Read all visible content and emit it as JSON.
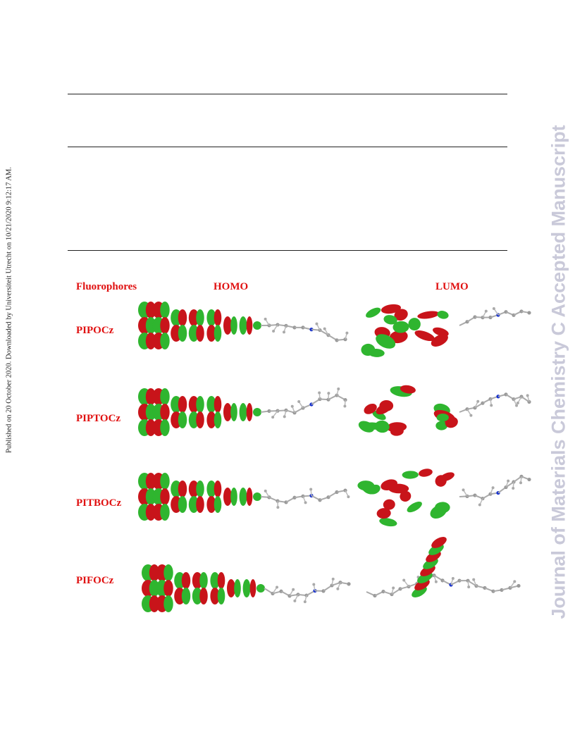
{
  "side_note": "Published on 20 October 2020. Downloaded by Universiteit Utrecht on 10/21/2020 9:12:17 AM.",
  "watermark": "Journal of Materials Chemistry C Accepted Manuscript",
  "figure": {
    "header": {
      "fluorophores": "Fluorophores",
      "homo": "HOMO",
      "lumo": "LUMO"
    },
    "rows": [
      "PIPOCz",
      "PIPTOCz",
      "PITBOCz",
      "PIFOCz"
    ]
  }
}
